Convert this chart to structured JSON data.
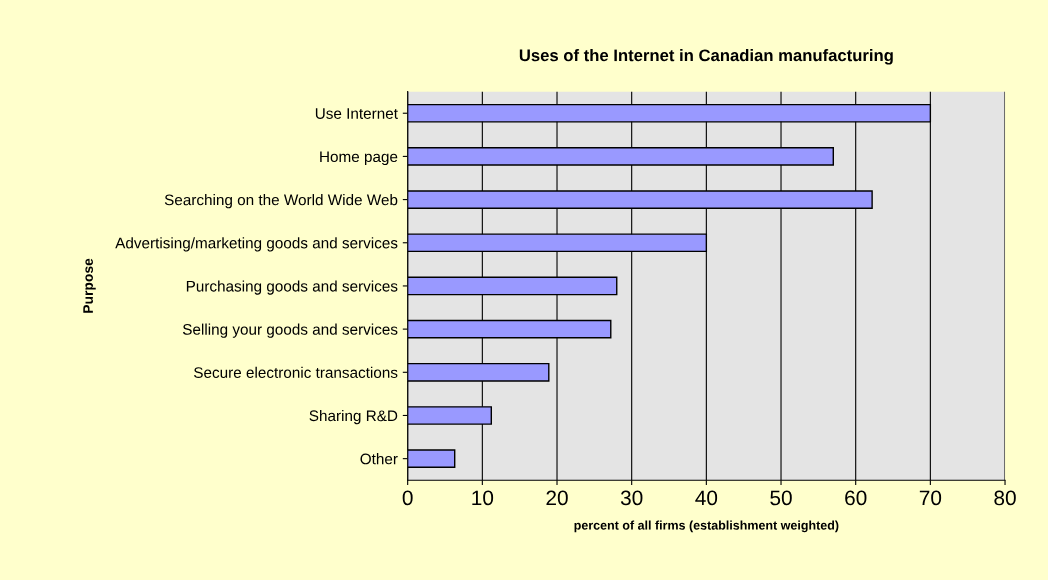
{
  "chart_data": {
    "type": "bar",
    "orientation": "horizontal",
    "title": "Uses of the Internet in Canadian manufacturing",
    "xlabel": "percent of all firms (establishment weighted)",
    "ylabel": "Purpose",
    "categories": [
      "Use Internet",
      "Home page",
      "Searching on the World Wide Web",
      "Advertising/marketing goods and services",
      "Purchasing goods and services",
      "Selling your goods and services",
      "Secure electronic transactions",
      "Sharing R&D",
      "Other"
    ],
    "values": [
      70,
      57,
      62.2,
      40,
      28,
      27.2,
      18.9,
      11.2,
      6.3
    ],
    "color": "#9999ff",
    "xlim": [
      0,
      80
    ],
    "xticks": [
      0,
      10,
      20,
      30,
      40,
      50,
      60,
      70,
      80
    ],
    "grid": "x",
    "legend": false
  }
}
